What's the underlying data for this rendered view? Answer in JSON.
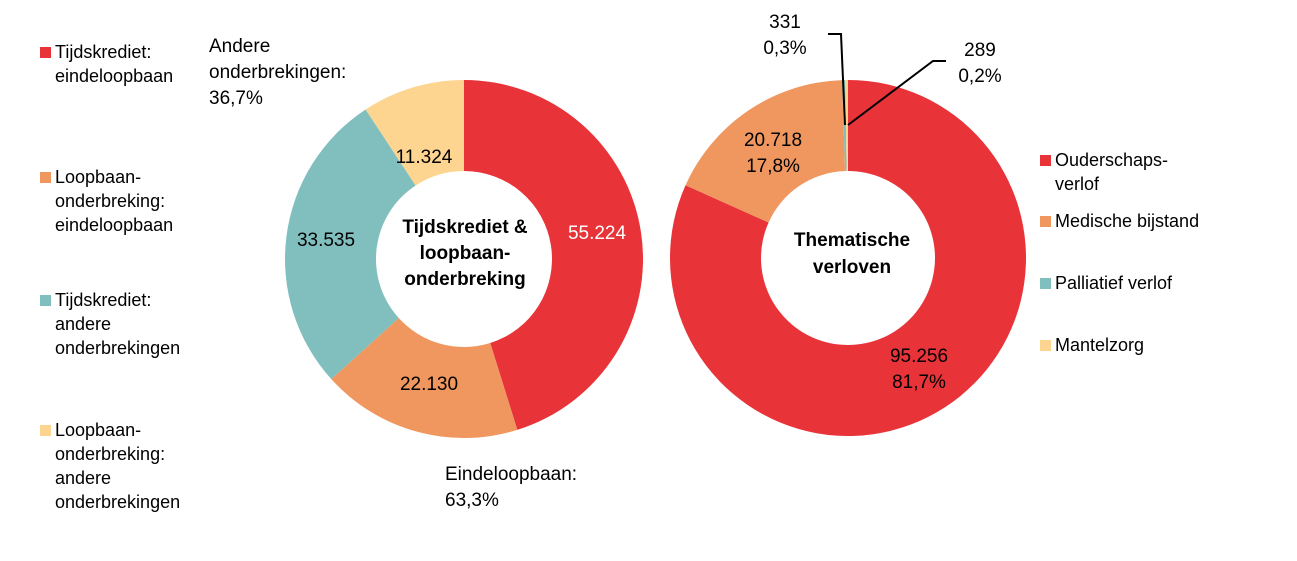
{
  "chart_data": [
    {
      "type": "donut",
      "center_label": [
        "Tijdskrediet &",
        "loopbaan-",
        "onderbreking"
      ],
      "categories": [
        "Tijdskrediet: eindeloopbaan",
        "Loopbaan-onderbreking: eindeloopbaan",
        "Tijdskrediet: andere onderbrekingen",
        "Loopbaan-onderbreking: andere onderbrekingen"
      ],
      "values": [
        55224,
        22130,
        33535,
        11324
      ],
      "value_labels": [
        "55.224",
        "22.130",
        "33.535",
        "11.324"
      ],
      "colors": [
        "#E83339",
        "#F0975F",
        "#80BFBE",
        "#FDD590"
      ],
      "legend": {
        "placement": "left",
        "items": [
          {
            "lines": [
              "Tijdskrediet:",
              "eindeloopbaan"
            ]
          },
          {
            "lines": [
              "Loopbaan-",
              "onderbreking:",
              "eindeloopbaan"
            ]
          },
          {
            "lines": [
              "Tijdskrediet:",
              "andere",
              "onderbrekingen"
            ]
          },
          {
            "lines": [
              "Loopbaan-",
              "onderbreking:",
              "andere",
              "onderbrekingen"
            ]
          }
        ]
      },
      "annotations": [
        {
          "lines": [
            "Andere",
            "onderbrekingen:",
            "36,7%"
          ]
        },
        {
          "lines": [
            "Eindeloopbaan:",
            "63,3%"
          ]
        }
      ]
    },
    {
      "type": "donut",
      "center_label": [
        "Thematische",
        "verloven"
      ],
      "categories": [
        "Ouderschapsverlof",
        "Medische bijstand",
        "Palliatief verlof",
        "Mantelzorg"
      ],
      "values": [
        95256,
        20718,
        331,
        289
      ],
      "value_labels": [
        [
          "95.256",
          "81,7%"
        ],
        [
          "20.718",
          "17,8%"
        ],
        [
          "331",
          "0,3%"
        ],
        [
          "289",
          "0,2%"
        ]
      ],
      "colors": [
        "#E83339",
        "#F0975F",
        "#80BFBE",
        "#FDD590"
      ],
      "legend": {
        "placement": "right",
        "items": [
          {
            "lines": [
              "Ouderschaps-",
              "verlof"
            ]
          },
          {
            "lines": [
              "Medische bijstand"
            ]
          },
          {
            "lines": [
              "Palliatief verlof"
            ]
          },
          {
            "lines": [
              "Mantelzorg"
            ]
          }
        ]
      }
    }
  ]
}
